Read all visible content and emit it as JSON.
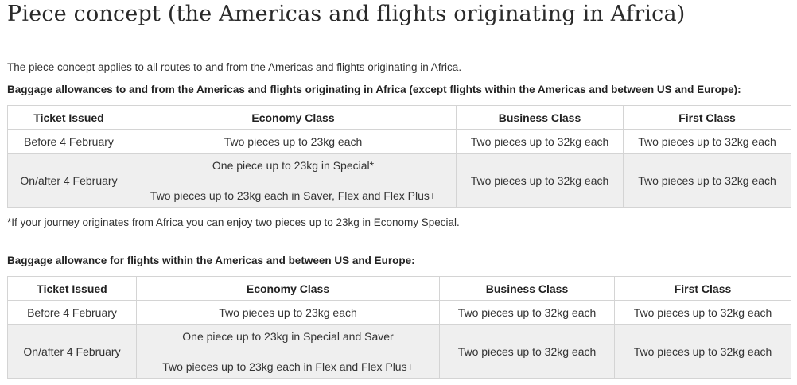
{
  "title": "Piece concept (the Americas and flights originating in Africa)",
  "intro": "The piece concept applies to all routes to and from the Americas and flights originating in Africa.",
  "section1": {
    "heading": "Baggage allowances to and from the Americas and flights originating in Africa (except flights within the Americas and between US and Europe):",
    "headers": [
      "Ticket Issued",
      "Economy Class",
      "Business Class",
      "First Class"
    ],
    "rows": [
      {
        "ticket": "Before 4 February",
        "economy": [
          "Two pieces up to 23kg each"
        ],
        "business": "Two pieces up to 32kg each",
        "first": "Two pieces up to 32kg each"
      },
      {
        "ticket": "On/after 4 February",
        "economy": [
          "One piece up to 23kg in Special*",
          "Two pieces up to 23kg each in Saver, Flex and Flex Plus+"
        ],
        "business": "Two pieces up to 32kg each",
        "first": "Two pieces up to 32kg each"
      }
    ],
    "footnote": "*If your journey originates from Africa you can enjoy two pieces up to 23kg in Economy Special."
  },
  "section2": {
    "heading": "Baggage allowance for flights within the Americas and between US and Europe:",
    "headers": [
      "Ticket Issued",
      "Economy Class",
      "Business Class",
      "First Class"
    ],
    "rows": [
      {
        "ticket": "Before 4 February",
        "economy": [
          "Two pieces up to 23kg each"
        ],
        "business": "Two pieces up to 32kg each",
        "first": "Two pieces up to 32kg each"
      },
      {
        "ticket": "On/after 4 February",
        "economy": [
          "One piece up to 23kg in Special and Saver",
          "Two pieces up to 23kg each in Flex and Flex Plus+"
        ],
        "business": "Two pieces up to 32kg each",
        "first": "Two pieces up to 32kg each"
      }
    ]
  }
}
